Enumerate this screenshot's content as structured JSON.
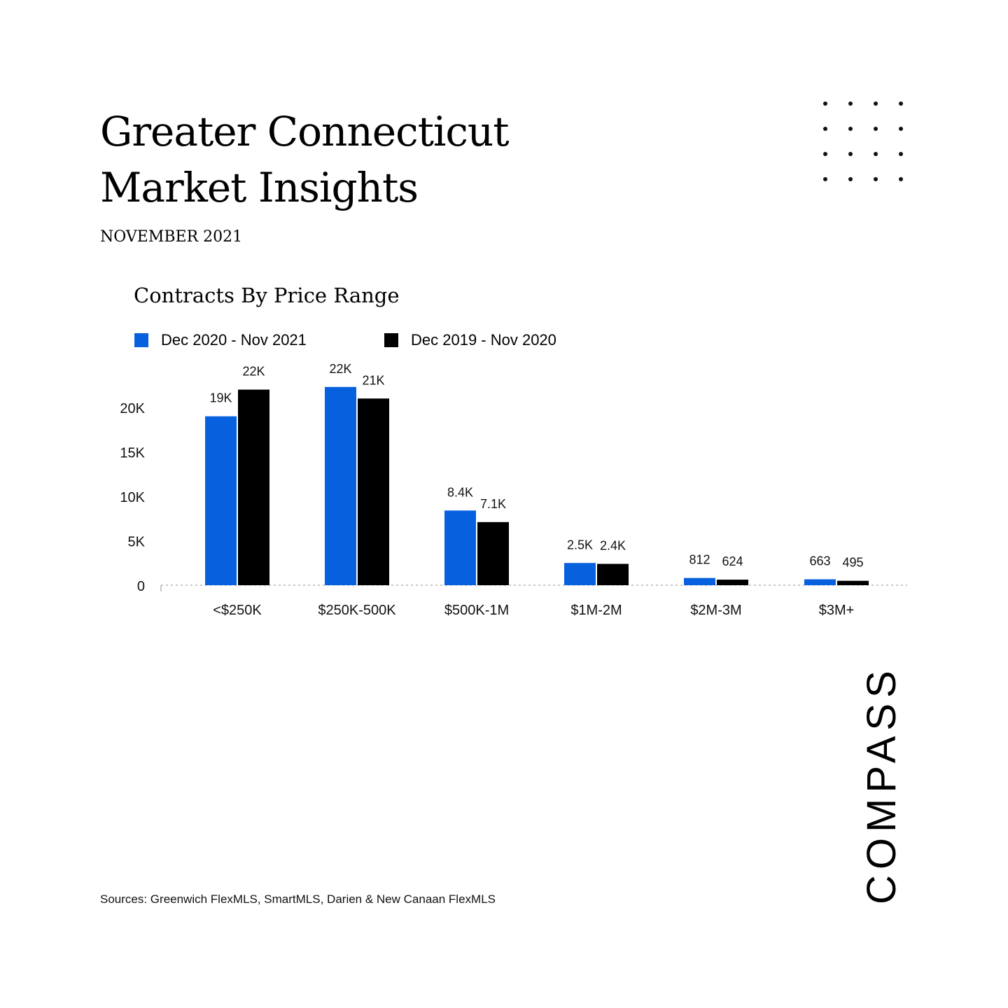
{
  "header": {
    "title_line1": "Greater Connecticut",
    "title_line2": "Market Insights",
    "subtitle": "NOVEMBER 2021"
  },
  "decor": {
    "icon": "dot-grid-icon"
  },
  "chart_data": {
    "type": "bar",
    "title": "Contracts By Price Range",
    "categories": [
      "<$250K",
      "$250K-500K",
      "$500K-1M",
      "$1M-2M",
      "$2M-3M",
      "$3M+"
    ],
    "series": [
      {
        "name": "Dec 2020 - Nov 2021",
        "color": "#0760de",
        "values": [
          19000,
          22300,
          8400,
          2500,
          812,
          663
        ],
        "labels": [
          "19K",
          "22K",
          "8.4K",
          "2.5K",
          "812",
          "663"
        ]
      },
      {
        "name": "Dec 2019 - Nov 2020",
        "color": "#000000",
        "values": [
          22000,
          21000,
          7100,
          2400,
          624,
          495
        ],
        "labels": [
          "22K",
          "21K",
          "7.1K",
          "2.4K",
          "624",
          "495"
        ]
      }
    ],
    "yticks": [
      0,
      5000,
      10000,
      15000,
      20000
    ],
    "ytick_labels": [
      "0",
      "5K",
      "10K",
      "15K",
      "20K"
    ],
    "ylim": [
      0,
      22000
    ],
    "grid": false,
    "legend_position": "top-left"
  },
  "footer": {
    "source": "Sources: Greenwich FlexMLS, SmartMLS, Darien & New Canaan FlexMLS",
    "logo_text": "COMPASS"
  }
}
